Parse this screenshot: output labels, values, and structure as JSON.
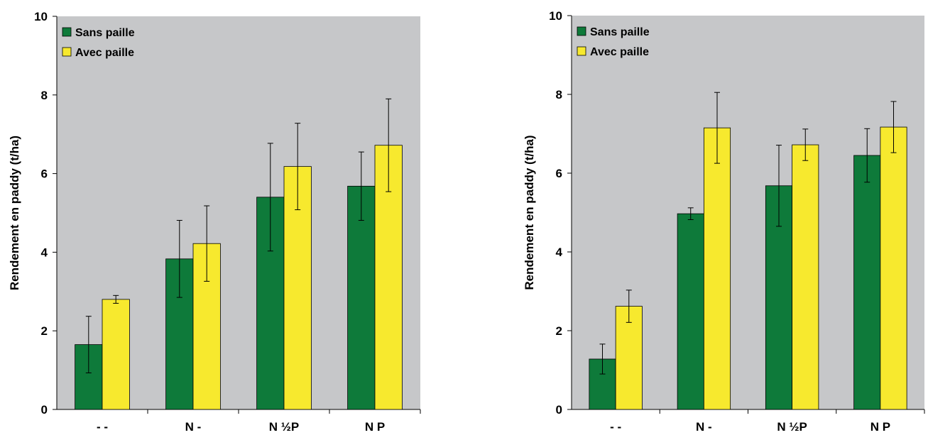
{
  "chart_data": [
    {
      "type": "bar",
      "title": "",
      "xlabel": "",
      "ylabel": "Rendement en paddy (t/ha)",
      "ylim": [
        0,
        10
      ],
      "yticks": [
        "0",
        "2",
        "4",
        "6",
        "8",
        "10"
      ],
      "grid": false,
      "legend_position": "top-left",
      "categories": [
        "- -",
        "N -",
        "N ½P",
        "N P"
      ],
      "series": [
        {
          "name": "Sans paille",
          "color": "#0e7a3a",
          "values": [
            1.65,
            3.83,
            5.4,
            5.68
          ],
          "errors": [
            0.72,
            0.98,
            1.37,
            0.87
          ]
        },
        {
          "name": "Avec paille",
          "color": "#f7e92e",
          "values": [
            2.8,
            4.22,
            6.18,
            6.72
          ],
          "errors": [
            0.1,
            0.96,
            1.1,
            1.18
          ]
        }
      ]
    },
    {
      "type": "bar",
      "title": "",
      "xlabel": "",
      "ylabel": "Rendement en paddy (t/ha)",
      "ylim": [
        0,
        10
      ],
      "yticks": [
        "0",
        "2",
        "4",
        "6",
        "8",
        "10"
      ],
      "grid": false,
      "legend_position": "top-left",
      "categories": [
        "- -",
        "N -",
        "N ½P",
        "N P"
      ],
      "series": [
        {
          "name": "Sans paille",
          "color": "#0e7a3a",
          "values": [
            1.28,
            4.97,
            5.68,
            6.45
          ],
          "errors": [
            0.38,
            0.15,
            1.03,
            0.68
          ]
        },
        {
          "name": "Avec paille",
          "color": "#f7e92e",
          "values": [
            2.62,
            7.15,
            6.72,
            7.17
          ],
          "errors": [
            0.41,
            0.9,
            0.4,
            0.65
          ]
        }
      ]
    }
  ]
}
